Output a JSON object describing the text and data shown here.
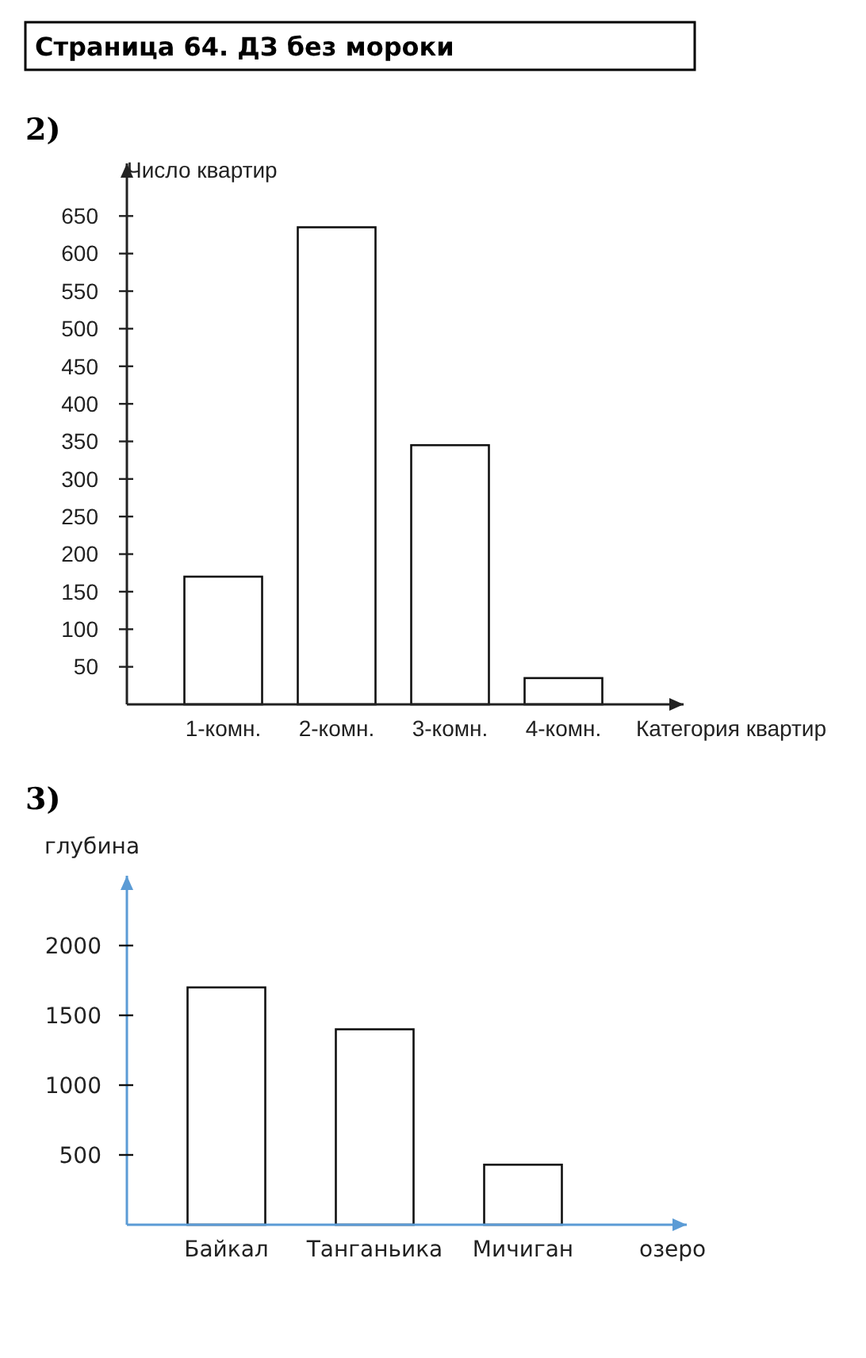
{
  "chart_data": [
    {
      "type": "bar",
      "title": "2)",
      "annotations": [
        "Страница 64. ДЗ без мороки"
      ],
      "xlabel": "Категория квартир",
      "ylabel": "Число квартир",
      "categories": [
        "1-комн.",
        "2-комн.",
        "3-комн.",
        "4-комн."
      ],
      "values": [
        170,
        635,
        345,
        35
      ],
      "color": "#ffffff",
      "ylim": [
        0,
        720
      ],
      "yticks": [
        50,
        100,
        150,
        200,
        250,
        300,
        350,
        400,
        450,
        500,
        550,
        600,
        650
      ],
      "grid": false
    },
    {
      "type": "bar",
      "title": "3)",
      "xlabel": "озеро",
      "ylabel": "глубина",
      "categories": [
        "Байкал",
        "Танганьика",
        "Мичиган"
      ],
      "values": [
        1700,
        1400,
        430
      ],
      "color": "#ffffff",
      "ylim": [
        0,
        2500
      ],
      "yticks": [
        500,
        1000,
        1500,
        2000
      ],
      "grid": false
    }
  ]
}
